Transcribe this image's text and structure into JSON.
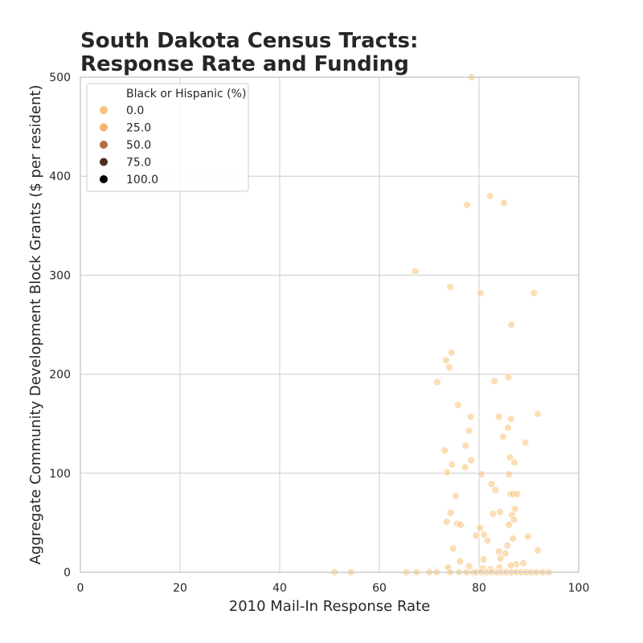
{
  "chart_data": {
    "type": "scatter",
    "title_lines": [
      "South Dakota Census Tracts:",
      "Response Rate and Funding"
    ],
    "xlabel": "2010 Mail-In Response Rate",
    "ylabel": "Aggregate Community Development Block Grants ($ per resident)",
    "xlim": [
      0,
      100
    ],
    "ylim": [
      0,
      500
    ],
    "xticks": [
      "0",
      "20",
      "40",
      "60",
      "80",
      "100"
    ],
    "yticks": [
      "0",
      "100",
      "200",
      "300",
      "400",
      "500"
    ],
    "grid": true,
    "legend": {
      "title": "Black or Hispanic (%)",
      "placement": "top-left",
      "entries": [
        {
          "label": "0.0",
          "color": "#f7c27a"
        },
        {
          "label": "25.0",
          "color": "#f2b46a"
        },
        {
          "label": "50.0",
          "color": "#b07040"
        },
        {
          "label": "75.0",
          "color": "#4e2e1b"
        },
        {
          "label": "100.0",
          "color": "#000000"
        }
      ]
    },
    "point_color": "#f7c27a",
    "point_opacity": 0.55,
    "points": [
      [
        78.5,
        500
      ],
      [
        82.2,
        380
      ],
      [
        85.0,
        373
      ],
      [
        77.6,
        371
      ],
      [
        67.2,
        304
      ],
      [
        74.2,
        288
      ],
      [
        80.3,
        282
      ],
      [
        91.0,
        282
      ],
      [
        86.5,
        250
      ],
      [
        74.5,
        222
      ],
      [
        73.4,
        214
      ],
      [
        74.0,
        207
      ],
      [
        71.6,
        192
      ],
      [
        85.9,
        197
      ],
      [
        83.1,
        193
      ],
      [
        75.8,
        169
      ],
      [
        91.8,
        160
      ],
      [
        78.3,
        157
      ],
      [
        84.0,
        157
      ],
      [
        86.4,
        155
      ],
      [
        85.8,
        146
      ],
      [
        78.0,
        143
      ],
      [
        84.8,
        137
      ],
      [
        89.3,
        131
      ],
      [
        77.3,
        128
      ],
      [
        73.1,
        123
      ],
      [
        86.2,
        116
      ],
      [
        78.4,
        113
      ],
      [
        87.1,
        111
      ],
      [
        74.6,
        109
      ],
      [
        77.2,
        106
      ],
      [
        73.6,
        101
      ],
      [
        86.0,
        99
      ],
      [
        80.5,
        99
      ],
      [
        82.5,
        89
      ],
      [
        83.3,
        83
      ],
      [
        86.3,
        79
      ],
      [
        86.8,
        79
      ],
      [
        87.6,
        79
      ],
      [
        75.3,
        77
      ],
      [
        87.2,
        64
      ],
      [
        74.3,
        60
      ],
      [
        84.2,
        61
      ],
      [
        82.8,
        59
      ],
      [
        86.6,
        58
      ],
      [
        87.0,
        53
      ],
      [
        73.5,
        51
      ],
      [
        75.6,
        49
      ],
      [
        76.3,
        48
      ],
      [
        86.0,
        48
      ],
      [
        80.2,
        45
      ],
      [
        79.4,
        37
      ],
      [
        81.0,
        38
      ],
      [
        89.8,
        36
      ],
      [
        86.8,
        34
      ],
      [
        81.7,
        32
      ],
      [
        85.7,
        27
      ],
      [
        74.8,
        24
      ],
      [
        84.0,
        21
      ],
      [
        91.8,
        22
      ],
      [
        85.3,
        19
      ],
      [
        84.3,
        14
      ],
      [
        80.9,
        13
      ],
      [
        76.2,
        11
      ],
      [
        88.9,
        9
      ],
      [
        87.4,
        8
      ],
      [
        78.0,
        6
      ],
      [
        86.4,
        7
      ],
      [
        73.8,
        5
      ],
      [
        84.1,
        5
      ],
      [
        80.7,
        4
      ],
      [
        82.3,
        3
      ],
      [
        51.0,
        0
      ],
      [
        54.3,
        0
      ],
      [
        65.4,
        0
      ],
      [
        67.5,
        0
      ],
      [
        70.0,
        0
      ],
      [
        71.5,
        0
      ],
      [
        74.2,
        0
      ],
      [
        76.0,
        0
      ],
      [
        77.5,
        0
      ],
      [
        78.8,
        0
      ],
      [
        79.5,
        0
      ],
      [
        80.5,
        0
      ],
      [
        81.5,
        0
      ],
      [
        82.5,
        0
      ],
      [
        83.5,
        0
      ],
      [
        84.5,
        0
      ],
      [
        85.5,
        0
      ],
      [
        86.5,
        0
      ],
      [
        87.5,
        0
      ],
      [
        88.5,
        0
      ],
      [
        89.5,
        0
      ],
      [
        90.5,
        0
      ],
      [
        91.5,
        0
      ],
      [
        92.8,
        0
      ],
      [
        94.0,
        0
      ]
    ]
  }
}
